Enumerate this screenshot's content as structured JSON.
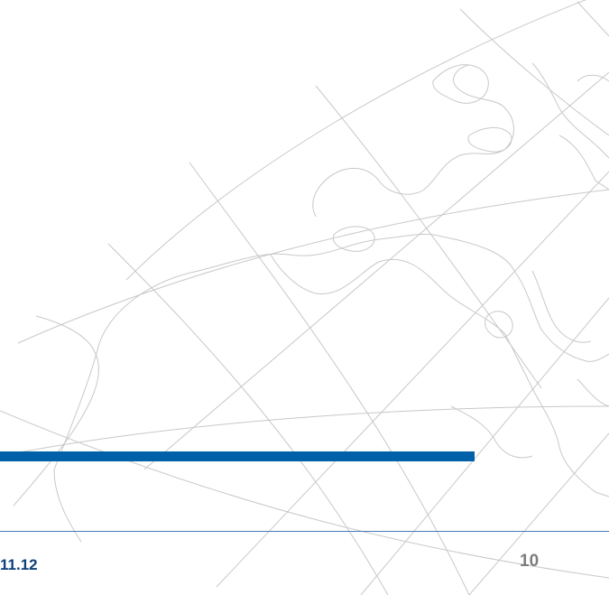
{
  "slide": {
    "footer_date": "11.12",
    "page_number": "10",
    "accent_color": "#0060a8",
    "rule_color": "#4a78b5",
    "line_color": "#c8c8c8"
  }
}
